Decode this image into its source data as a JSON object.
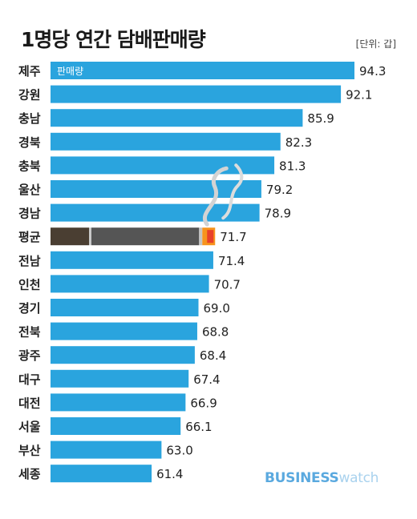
{
  "title": "1명당 연간 담배판매량",
  "unit_note": "[단위: 갑]",
  "brand": {
    "part1": "BUSINESS",
    "part2": "watch"
  },
  "colors": {
    "bar": "#2aa4de",
    "text": "#222222",
    "average_bar": "#555555",
    "flame": "#f7941d"
  },
  "chart_data": {
    "type": "bar",
    "orientation": "horizontal",
    "title": "1명당 연간 담배판매량",
    "unit": "[단위: 갑]",
    "series_label": "판매량",
    "categories": [
      "제주",
      "강원",
      "충남",
      "경북",
      "충북",
      "울산",
      "경남",
      "평균",
      "전남",
      "인천",
      "경기",
      "전북",
      "광주",
      "대구",
      "대전",
      "서울",
      "부산",
      "세종"
    ],
    "values": [
      94.3,
      92.1,
      85.9,
      82.3,
      81.3,
      79.2,
      78.9,
      71.7,
      71.4,
      70.7,
      69.0,
      68.8,
      68.4,
      67.4,
      66.9,
      66.1,
      63.0,
      61.4
    ],
    "value_labels": [
      "94.3",
      "92.1",
      "85.9",
      "82.3",
      "81.3",
      "79.2",
      "78.9",
      "71.7",
      "71.4",
      "70.7",
      "69.0",
      "68.8",
      "68.4",
      "67.4",
      "66.9",
      "66.1",
      "63.0",
      "61.4"
    ],
    "highlight": "평균",
    "xlim": [
      45,
      94.3
    ]
  }
}
